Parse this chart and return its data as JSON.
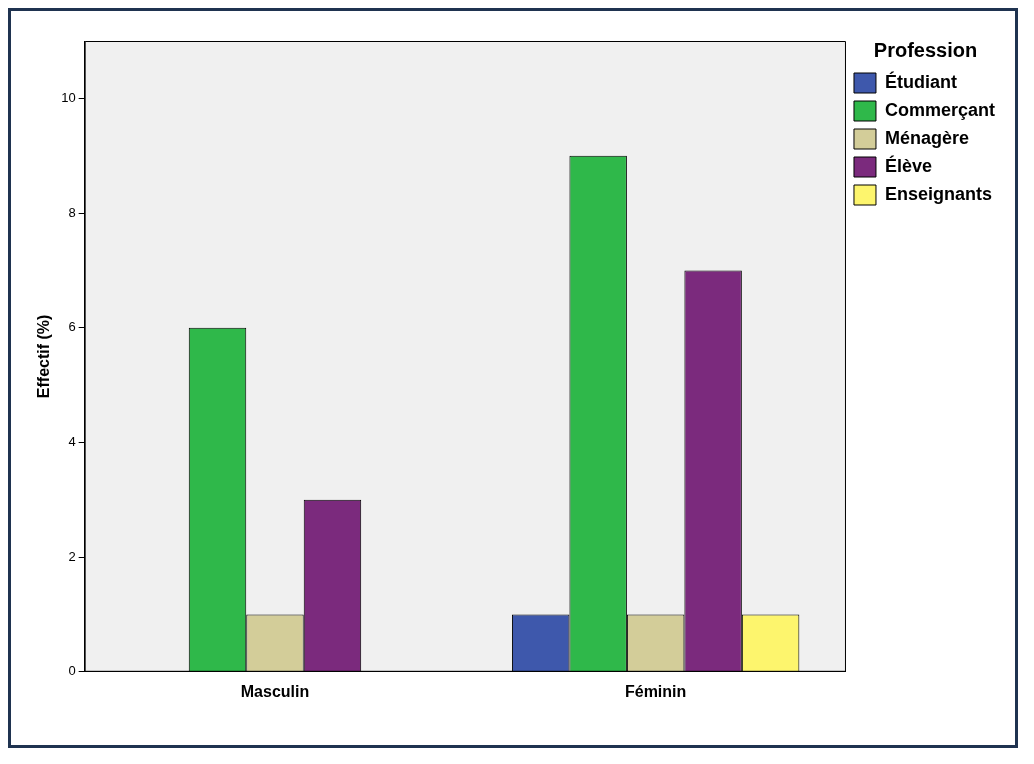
{
  "chart_data": {
    "type": "bar",
    "ylabel": "Effectif (%)",
    "legend_title": "Profession",
    "categories": [
      "Masculin",
      "Féminin"
    ],
    "series": [
      {
        "name": "Étudiant",
        "color": "#3e58ac",
        "values": [
          0,
          1
        ]
      },
      {
        "name": "Commerçant",
        "color": "#2fb84a",
        "values": [
          6,
          9
        ]
      },
      {
        "name": "Ménagère",
        "color": "#d3cd99",
        "values": [
          1,
          1
        ]
      },
      {
        "name": "Élève",
        "color": "#7b2a7d",
        "values": [
          3,
          7
        ]
      },
      {
        "name": "Enseignants",
        "color": "#fdf56d",
        "values": [
          0,
          1
        ]
      }
    ],
    "ylim": [
      0,
      11
    ],
    "yticks": [
      0,
      2,
      4,
      6,
      8,
      10
    ],
    "grid": false,
    "legend": "top right"
  }
}
